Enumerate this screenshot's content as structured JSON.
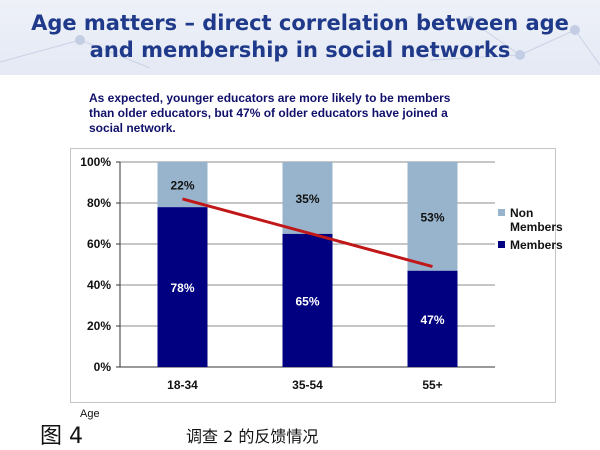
{
  "slide": {
    "title_line1": "Age matters – direct correlation between age",
    "title_line2": "and membership in social networks",
    "subtitle_line1": "As expected, younger educators are more likely to be members",
    "subtitle_line2": "than older educators, but 47% of older educators have joined a",
    "subtitle_line3": "social network."
  },
  "caption": {
    "figure_label": "图 4",
    "axis_word": "Age",
    "description": "调查 2 的反馈情况"
  },
  "colors": {
    "members": "#000080",
    "non_members": "#98b4cc",
    "trend_line": "#c01818",
    "title": "#1f3a8a",
    "subtitle": "#10106b"
  },
  "chart_data": {
    "type": "bar",
    "stacked": true,
    "categories": [
      "18-34",
      "35-54",
      "55+"
    ],
    "series": [
      {
        "name": "Members",
        "values": [
          78,
          65,
          47
        ],
        "labels": [
          "78%",
          "65%",
          "47%"
        ]
      },
      {
        "name": "Non Members",
        "values": [
          22,
          35,
          53
        ],
        "labels": [
          "22%",
          "35%",
          "53%"
        ]
      }
    ],
    "ylim": [
      0,
      100
    ],
    "yticks": [
      0,
      20,
      40,
      60,
      80,
      100
    ],
    "ytick_labels": [
      "0%",
      "20%",
      "40%",
      "60%",
      "80%",
      "100%"
    ],
    "legend": [
      "Non Members",
      "Members"
    ],
    "legend_position": "right",
    "grid": true,
    "trend_line": {
      "start": 82,
      "end": 49
    },
    "xlabel": "Age",
    "ylabel": ""
  }
}
